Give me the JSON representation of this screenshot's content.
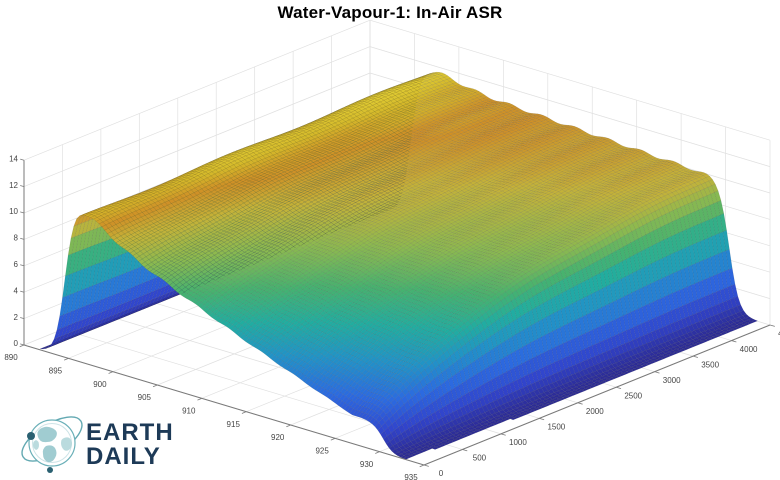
{
  "title": "Water-Vapour-1: In-Air ASR",
  "logo": {
    "line1": "EARTH",
    "line2": "DAILY",
    "text_color": "#1d3a57",
    "teal": "#63a9b2",
    "land_teal": "#8fc3c9",
    "dark_dot": "#2a6071"
  },
  "plot": {
    "background": "#ffffff",
    "grid_color": "#e0e0e0",
    "axis_color": "#7a7a7a",
    "tick_label_color": "#454545",
    "mesh_line": "rgba(30,30,30,0.22)"
  },
  "chart_data": {
    "type": "surface",
    "title": "Water-Vapour-1: In-Air ASR",
    "x_axis": {
      "range": [
        890,
        935
      ],
      "ticks": [
        890,
        895,
        900,
        905,
        910,
        915,
        920,
        925,
        930,
        935
      ]
    },
    "y_axis": {
      "range": [
        0,
        4500
      ],
      "ticks": [
        0,
        500,
        1000,
        1500,
        2000,
        2500,
        3000,
        3500,
        4000,
        4500
      ]
    },
    "z_axis": {
      "range": [
        0,
        14
      ],
      "ticks": [
        0,
        2,
        4,
        6,
        8,
        10,
        12,
        14
      ]
    },
    "grid": true,
    "legend": false,
    "surface_model": {
      "plateau_base": 11.2,
      "peak_amp": 0.55,
      "peak_center": 897,
      "peak_width": 4,
      "tilt": 0.017,
      "left_edge": 894.6,
      "right_edge": 930.4,
      "edge_softness": 0.55,
      "absorption_max": 0.8,
      "absorption_start": 896,
      "absorption_ramp": 31,
      "absorption_exp": 0.9,
      "decay_scale": 1700,
      "color_max": 11.8
    },
    "z_samples": {
      "wavelengths": [
        890,
        895,
        900,
        905,
        910,
        915,
        920,
        925,
        930,
        935
      ],
      "y_values": [
        0,
        1500,
        3000,
        4500
      ],
      "z": [
        [
          0.0,
          0.0,
          0.0,
          0.0
        ],
        [
          7.8,
          7.8,
          7.8,
          7.8
        ],
        [
          10.0,
          10.9,
          11.2,
          11.4
        ],
        [
          8.2,
          9.9,
          10.6,
          10.9
        ],
        [
          6.7,
          9.2,
          10.2,
          10.7
        ],
        [
          5.3,
          8.6,
          9.9,
          10.5
        ],
        [
          4.0,
          8.0,
          9.6,
          10.3
        ],
        [
          2.7,
          7.4,
          9.3,
          10.2
        ],
        [
          1.4,
          4.8,
          6.2,
          6.8
        ],
        [
          0.0,
          0.0,
          0.0,
          0.0
        ]
      ]
    },
    "colormap_stops": [
      [
        0.0,
        "#2c2a92"
      ],
      [
        0.12,
        "#3144cc"
      ],
      [
        0.26,
        "#2c6ae0"
      ],
      [
        0.4,
        "#2193c7"
      ],
      [
        0.52,
        "#21ada0"
      ],
      [
        0.63,
        "#46b26f"
      ],
      [
        0.74,
        "#8cb94f"
      ],
      [
        0.84,
        "#c4b239"
      ],
      [
        0.91,
        "#cf9027"
      ],
      [
        0.96,
        "#d4b82a"
      ],
      [
        1.0,
        "#e0cc33"
      ]
    ]
  }
}
